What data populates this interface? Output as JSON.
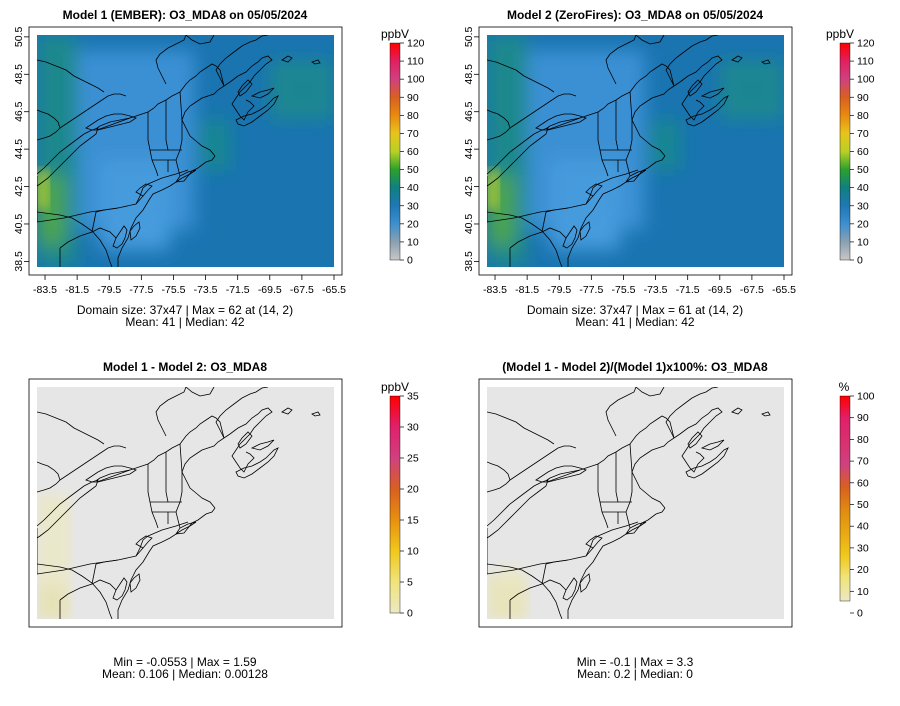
{
  "chart_data": [
    {
      "type": "heatmap",
      "title": "Model 1 (EMBER): O3_MDA8 on 05/05/2024",
      "lon_labels": [
        "-83.5",
        "-81.5",
        "-79.5",
        "-77.5",
        "-75.5",
        "-73.5",
        "-71.5",
        "-69.5",
        "-67.5",
        "-65.5"
      ],
      "lat_labels": [
        "38.5",
        "40.5",
        "42.5",
        "44.5",
        "46.5",
        "48.5",
        "50.5"
      ],
      "xlim": [
        -84,
        -65.5
      ],
      "ylim": [
        38.2,
        50.6
      ],
      "colorbar": {
        "unit": "ppbV",
        "min": 0,
        "max": 120,
        "ticks": [
          "0",
          "10",
          "20",
          "30",
          "40",
          "50",
          "60",
          "70",
          "80",
          "90",
          "100",
          "110",
          "120"
        ]
      },
      "stats_line1": "Domain size: 37x47 | Max = 62 at (14, 2)",
      "stats_line2": "Mean: 41 |  Median: 42",
      "domain_size": "37x47",
      "max": 62,
      "max_at": "(14, 2)",
      "mean": 41,
      "median": 42
    },
    {
      "type": "heatmap",
      "title": "Model 2 (ZeroFires): O3_MDA8 on 05/05/2024",
      "lon_labels": [
        "-83.5",
        "-81.5",
        "-79.5",
        "-77.5",
        "-75.5",
        "-73.5",
        "-71.5",
        "-69.5",
        "-67.5",
        "-65.5"
      ],
      "lat_labels": [
        "38.5",
        "40.5",
        "42.5",
        "44.5",
        "46.5",
        "48.5",
        "50.5"
      ],
      "xlim": [
        -84,
        -65.5
      ],
      "ylim": [
        38.2,
        50.6
      ],
      "colorbar": {
        "unit": "ppbV",
        "min": 0,
        "max": 120,
        "ticks": [
          "0",
          "10",
          "20",
          "30",
          "40",
          "50",
          "60",
          "70",
          "80",
          "90",
          "100",
          "110",
          "120"
        ]
      },
      "stats_line1": "Domain size: 37x47 | Max = 61 at (14, 2)",
      "stats_line2": "Mean: 41 |  Median: 42",
      "domain_size": "37x47",
      "max": 61,
      "max_at": "(14, 2)",
      "mean": 41,
      "median": 42
    },
    {
      "type": "heatmap",
      "title": "Model 1 - Model 2: O3_MDA8",
      "xlim": [
        -84,
        -65.5
      ],
      "ylim": [
        38.2,
        50.6
      ],
      "colorbar": {
        "unit": "ppbV",
        "min": 0,
        "max": 35,
        "ticks": [
          "0",
          "5",
          "10",
          "15",
          "20",
          "25",
          "30",
          "35"
        ]
      },
      "stats_line1": "Min = -0.0553 | Max = 1.59",
      "stats_line2": "Mean: 0.106 |  Median: 0.00128",
      "min": -0.0553,
      "max": 1.59,
      "mean": 0.106,
      "median": 0.00128
    },
    {
      "type": "heatmap",
      "title": "(Model 1 - Model 2)/(Model 1)x100%: O3_MDA8",
      "xlim": [
        -84,
        -65.5
      ],
      "ylim": [
        38.2,
        50.6
      ],
      "colorbar": {
        "unit": "%",
        "min": 0,
        "max": 100,
        "ticks": [
          "0",
          "10",
          "20",
          "30",
          "40",
          "50",
          "60",
          "70",
          "80",
          "90",
          "100"
        ]
      },
      "stats_line1": "Min = -0.1 | Max = 3.3",
      "stats_line2": "Mean: 0.2 |  Median: 0",
      "min": -0.1,
      "max": 3.3,
      "mean": 0.2,
      "median": 0
    }
  ],
  "colors": {
    "conc_palette": [
      "#c8c8c8",
      "#8aa0b0",
      "#3c8fd0",
      "#1f78b4",
      "#0f8080",
      "#2ca02c",
      "#b8d026",
      "#e8c41c",
      "#e88a10",
      "#d86020",
      "#d04080",
      "#e02060",
      "#ff0000"
    ],
    "diff_palette": [
      "#ece8c4",
      "#f0e47c",
      "#f0c81c",
      "#e89010",
      "#d86020",
      "#d04080",
      "#e0206a",
      "#ff0000"
    ],
    "pct_palette": [
      "#ece8c4",
      "#f0e47c",
      "#f0c81c",
      "#e8a814",
      "#e08a10",
      "#d86020",
      "#d04080",
      "#d83070",
      "#e0206a",
      "#ff0000"
    ],
    "background_field": "#1a74b0",
    "diff_background": "#e6e6e6"
  }
}
